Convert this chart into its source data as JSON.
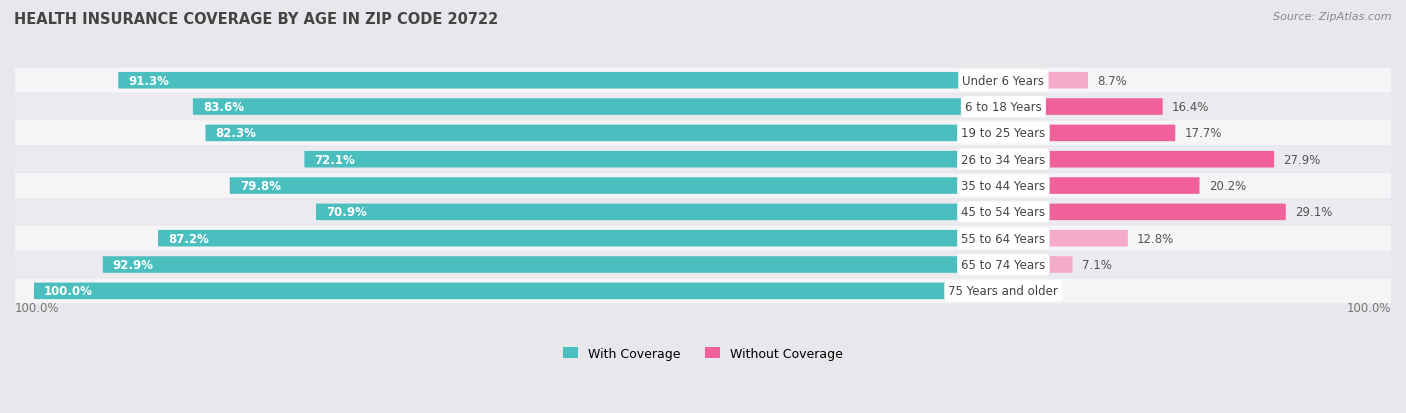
{
  "title": "HEALTH INSURANCE COVERAGE BY AGE IN ZIP CODE 20722",
  "source": "Source: ZipAtlas.com",
  "categories": [
    "Under 6 Years",
    "6 to 18 Years",
    "19 to 25 Years",
    "26 to 34 Years",
    "35 to 44 Years",
    "45 to 54 Years",
    "55 to 64 Years",
    "65 to 74 Years",
    "75 Years and older"
  ],
  "with_coverage": [
    91.3,
    83.6,
    82.3,
    72.1,
    79.8,
    70.9,
    87.2,
    92.9,
    100.0
  ],
  "without_coverage": [
    8.7,
    16.4,
    17.7,
    27.9,
    20.2,
    29.1,
    12.8,
    7.1,
    0.0
  ],
  "color_with": "#4bbfbf",
  "color_without_dark": "#f0609a",
  "color_without_light": "#f5aac8",
  "without_threshold": 15.0,
  "bg_color": "#e8e8ec",
  "row_bg_light": "#f5f5f8",
  "row_bg_dark": "#ebebef",
  "title_fontsize": 10.5,
  "label_fontsize": 8.5,
  "pct_fontsize": 8.5,
  "legend_fontsize": 9,
  "source_fontsize": 8,
  "cat_label_fontsize": 8.5
}
